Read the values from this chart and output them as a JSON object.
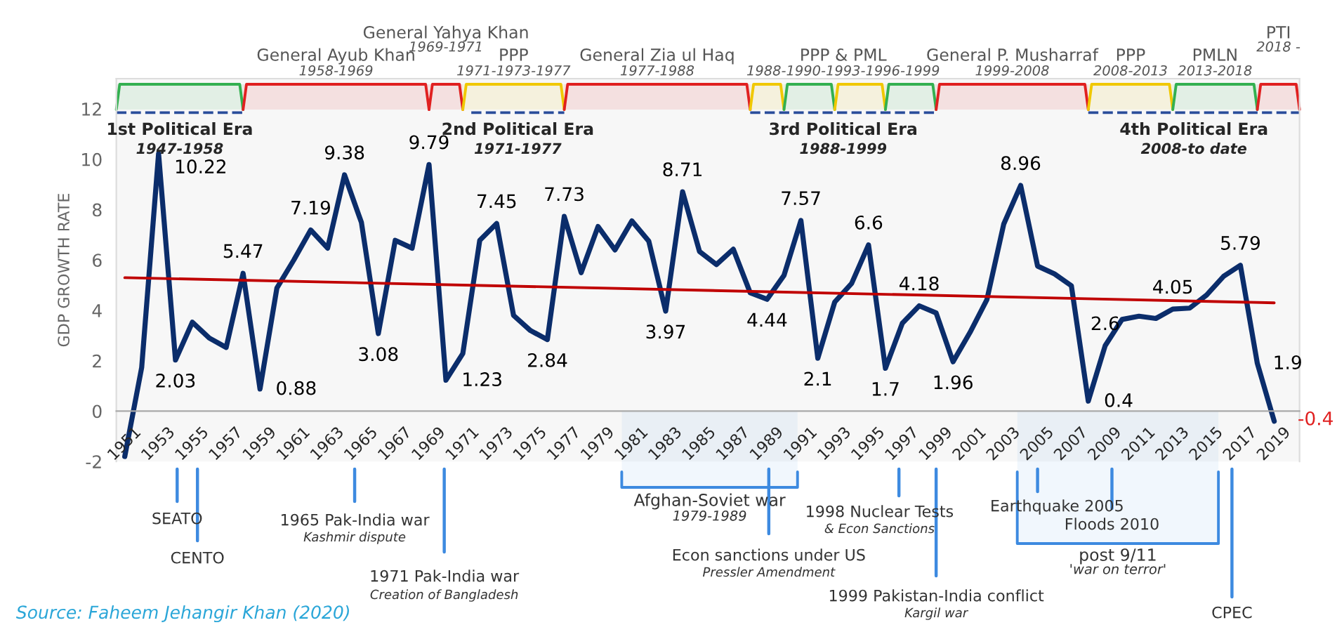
{
  "chart_data": {
    "type": "line",
    "ylabel": "GDP GROWTH RATE",
    "x": [
      1951,
      1952,
      1953,
      1954,
      1955,
      1956,
      1957,
      1958,
      1959,
      1960,
      1961,
      1962,
      1963,
      1964,
      1965,
      1966,
      1967,
      1968,
      1969,
      1970,
      1971,
      1972,
      1973,
      1974,
      1975,
      1976,
      1977,
      1978,
      1979,
      1980,
      1981,
      1982,
      1983,
      1984,
      1985,
      1986,
      1987,
      1988,
      1989,
      1990,
      1991,
      1992,
      1993,
      1994,
      1995,
      1996,
      1997,
      1998,
      1999,
      2000,
      2001,
      2002,
      2003,
      2004,
      2005,
      2006,
      2007,
      2008,
      2009,
      2010,
      2011,
      2012,
      2013,
      2014,
      2015,
      2016,
      2017,
      2018,
      2019
    ],
    "series": [
      {
        "color": "#0b2d6b",
        "values": [
          -1.8,
          1.73,
          10.22,
          2.03,
          3.53,
          2.9,
          2.53,
          5.47,
          0.88,
          4.89,
          6.0,
          7.19,
          6.47,
          9.38,
          7.49,
          3.08,
          6.78,
          6.47,
          9.79,
          1.23,
          2.29,
          6.78,
          7.45,
          3.8,
          3.2,
          2.84,
          7.73,
          5.5,
          7.33,
          6.4,
          7.55,
          6.75,
          3.97,
          8.71,
          6.34,
          5.82,
          6.43,
          4.7,
          4.44,
          5.39,
          7.57,
          2.1,
          4.33,
          5.07,
          6.6,
          1.7,
          3.49,
          4.18,
          3.9,
          1.96,
          3.12,
          4.42,
          7.43,
          8.96,
          5.76,
          5.45,
          4.98,
          0.4,
          2.6,
          3.64,
          3.77,
          3.68,
          4.05,
          4.09,
          4.61,
          5.35,
          5.79,
          1.9,
          -0.4
        ],
        "value_labels": [
          null,
          null,
          "10.22",
          "2.03",
          null,
          null,
          null,
          "5.47",
          "0.88",
          null,
          null,
          "7.19",
          null,
          "9.38",
          null,
          "3.08",
          null,
          null,
          "9.79",
          "1.23",
          null,
          null,
          "7.45",
          null,
          null,
          "2.84",
          "7.73",
          null,
          null,
          null,
          null,
          null,
          "3.97",
          "8.71",
          null,
          null,
          null,
          null,
          "4.44",
          null,
          "7.57",
          "2.1",
          null,
          null,
          "6.6",
          "1.7",
          null,
          "4.18",
          null,
          "1.96",
          null,
          null,
          null,
          "8.96",
          null,
          null,
          null,
          "0.4",
          "2.6",
          null,
          null,
          null,
          "4.05",
          null,
          null,
          null,
          "5.79",
          "1.9",
          "-0.4"
        ]
      },
      {
        "color": "#c00000",
        "x": [
          1951,
          2019
        ],
        "values": [
          5.3,
          4.3
        ]
      },
      {
        "color": "#2a4d9b",
        "line_style": "dashed",
        "x": [
          1950.5,
          1958
        ],
        "values": [
          11.85,
          11.85
        ]
      },
      {
        "color": "#2a4d9b",
        "line_style": "dashed",
        "x": [
          1971.5,
          1977
        ],
        "values": [
          11.85,
          11.85
        ]
      },
      {
        "color": "#2a4d9b",
        "line_style": "dashed",
        "x": [
          1988,
          1999
        ],
        "values": [
          11.85,
          11.85
        ]
      },
      {
        "color": "#2a4d9b",
        "line_style": "dashed",
        "x": [
          2008,
          2020.5
        ],
        "values": [
          11.85,
          11.85
        ]
      }
    ],
    "xlim": [
      1950.5,
      2020.5
    ],
    "xticks": [
      1951,
      1953,
      1955,
      1957,
      1959,
      1961,
      1963,
      1965,
      1967,
      1969,
      1971,
      1973,
      1975,
      1977,
      1979,
      1981,
      1983,
      1985,
      1987,
      1989,
      1991,
      1993,
      1995,
      1997,
      1999,
      2001,
      2003,
      2005,
      2007,
      2009,
      2011,
      2013,
      2015,
      2017,
      2019
    ],
    "ylim": [
      -2,
      13.2
    ],
    "yticks": [
      -2,
      0,
      2,
      4,
      6,
      8,
      10,
      12
    ],
    "bands": [
      {
        "axis": "x",
        "from": 1950.5,
        "to": 1958,
        "color": "#33b050"
      },
      {
        "axis": "x",
        "from": 1958,
        "to": 1969,
        "color": "#e02020",
        "label": "General Ayub Khan\n1958-1969"
      },
      {
        "axis": "x",
        "from": 1969,
        "to": 1971,
        "color": "#e02020",
        "label": "General Yahya Khan\n1969-1971"
      },
      {
        "axis": "x",
        "from": 1971,
        "to": 1977,
        "color": "#f0c800",
        "label": "PPP\n1971-1973-1977"
      },
      {
        "axis": "x",
        "from": 1977,
        "to": 1988,
        "color": "#e02020",
        "label": "General Zia ul Haq\n1977-1988"
      },
      {
        "axis": "x",
        "from": 1988,
        "to": 1990,
        "color": "#f0c800",
        "label": "PPP & PML\n1988-1990-1993-1996-1999"
      },
      {
        "axis": "x",
        "from": 1990,
        "to": 1993,
        "color": "#33b050"
      },
      {
        "axis": "x",
        "from": 1993,
        "to": 1996,
        "color": "#f0c800"
      },
      {
        "axis": "x",
        "from": 1996,
        "to": 1999,
        "color": "#33b050"
      },
      {
        "axis": "x",
        "from": 1999,
        "to": 2008,
        "color": "#e02020",
        "label": "General P. Musharraf\n1999-2008"
      },
      {
        "axis": "x",
        "from": 2008,
        "to": 2013,
        "color": "#f0c800",
        "label": "PPP\n2008-2013"
      },
      {
        "axis": "x",
        "from": 2013,
        "to": 2018,
        "color": "#33b050",
        "label": "PMLN\n2013-2018"
      },
      {
        "axis": "x",
        "from": 2018,
        "to": 2020.5,
        "color": "#e02020",
        "label": "PTI\n2018 -"
      },
      {
        "axis": "x",
        "from": 1980.4,
        "to": 1990.8,
        "label": "Afghan-Soviet war\n1979-1989"
      },
      {
        "axis": "x",
        "from": 2003.8,
        "to": 2015.7,
        "label": "post 9/11\n'war on terror'"
      }
    ],
    "ref_lines": [
      {
        "axis": "x",
        "value": 1954.1,
        "label": "SEATO",
        "color": "#3d8ae0"
      },
      {
        "axis": "x",
        "value": 1955.3,
        "label": "CENTO",
        "color": "#3d8ae0"
      },
      {
        "axis": "x",
        "value": 1964.6,
        "label": "1965 Pak-India war\nKashmir dispute",
        "color": "#3d8ae0"
      },
      {
        "axis": "x",
        "value": 1969.9,
        "label": "1971 Pak-India war\nCreation of Bangladesh",
        "color": "#3d8ae0"
      },
      {
        "axis": "x",
        "value": 1989.1,
        "label": "Econ sanctions under US\nPressler Amendment",
        "color": "#3d8ae0"
      },
      {
        "axis": "x",
        "value": 1996.8,
        "label": "1998 Nuclear Tests\n& Econ Sanctions",
        "color": "#3d8ae0"
      },
      {
        "axis": "x",
        "value": 1999.0,
        "label": "1999 Pakistan-India conflict\nKargil war",
        "color": "#3d8ae0"
      },
      {
        "axis": "x",
        "value": 2005.0,
        "label": "Earthquake 2005",
        "color": "#3d8ae0"
      },
      {
        "axis": "x",
        "value": 2009.4,
        "label": "Floods 2010",
        "color": "#3d8ae0"
      },
      {
        "axis": "x",
        "value": 2016.5,
        "label": "CPEC",
        "color": "#3d8ae0"
      }
    ],
    "annotations": [
      {
        "text": "1st Political Era\n1947-1958",
        "x": 1954.25,
        "y": 11.85
      },
      {
        "text": "2nd Political Era\n1971-1977",
        "x": 1974.25,
        "y": 11.85
      },
      {
        "text": "3rd Political Era\n1988-1999",
        "x": 1993.5,
        "y": 11.85
      },
      {
        "text": "4th Political Era\n2008-to date",
        "x": 2014.25,
        "y": 11.85
      },
      "Source: Faheem Jehangir Khan (2020)"
    ]
  }
}
